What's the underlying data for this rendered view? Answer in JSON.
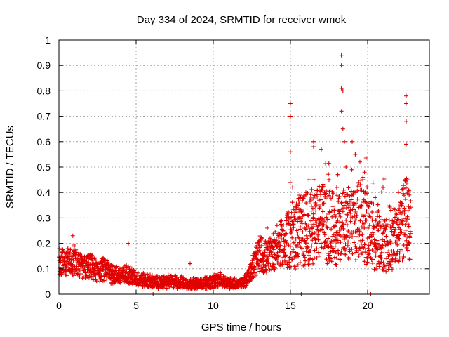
{
  "chart_data": {
    "type": "scatter",
    "title": "Day 334 of 2024, SRMTID for receiver wmok",
    "xlabel": "GPS time / hours",
    "ylabel": "SRMTID / TECUs",
    "xlim": [
      0,
      24
    ],
    "ylim": [
      0,
      1
    ],
    "xticks": [
      0,
      5,
      10,
      15,
      20
    ],
    "yticks": [
      0,
      0.1,
      0.2,
      0.3,
      0.4,
      0.5,
      0.6,
      0.7,
      0.8,
      0.9,
      1
    ],
    "xtick_labels": [
      "0",
      "5",
      "10",
      "15",
      "20"
    ],
    "ytick_labels": [
      "0",
      "0.1",
      "0.2",
      "0.3",
      "0.4",
      "0.5",
      "0.6",
      "0.7",
      "0.8",
      "0.9",
      "1"
    ],
    "grid": true,
    "marker": "+",
    "color": "#e00000",
    "series": [
      {
        "name": "SRMTID",
        "profile": [
          [
            0.0,
            0.13
          ],
          [
            0.5,
            0.12
          ],
          [
            1.0,
            0.14
          ],
          [
            1.5,
            0.1
          ],
          [
            2.0,
            0.11
          ],
          [
            2.5,
            0.09
          ],
          [
            3.0,
            0.1
          ],
          [
            3.5,
            0.08
          ],
          [
            4.0,
            0.07
          ],
          [
            4.5,
            0.08
          ],
          [
            5.0,
            0.06
          ],
          [
            5.5,
            0.055
          ],
          [
            6.0,
            0.05
          ],
          [
            6.5,
            0.045
          ],
          [
            7.0,
            0.05
          ],
          [
            7.5,
            0.05
          ],
          [
            8.0,
            0.045
          ],
          [
            8.5,
            0.04
          ],
          [
            9.0,
            0.04
          ],
          [
            9.5,
            0.045
          ],
          [
            10.0,
            0.05
          ],
          [
            10.5,
            0.055
          ],
          [
            11.0,
            0.045
          ],
          [
            11.5,
            0.04
          ],
          [
            12.0,
            0.045
          ],
          [
            12.5,
            0.1
          ],
          [
            13.0,
            0.16
          ],
          [
            13.5,
            0.14
          ],
          [
            14.0,
            0.18
          ],
          [
            14.5,
            0.2
          ],
          [
            15.0,
            0.22
          ],
          [
            15.5,
            0.24
          ],
          [
            16.0,
            0.26
          ],
          [
            16.5,
            0.27
          ],
          [
            17.0,
            0.28
          ],
          [
            17.5,
            0.27
          ],
          [
            18.0,
            0.26
          ],
          [
            18.5,
            0.27
          ],
          [
            19.0,
            0.28
          ],
          [
            19.5,
            0.3
          ],
          [
            20.0,
            0.26
          ],
          [
            20.5,
            0.22
          ],
          [
            21.0,
            0.2
          ],
          [
            21.5,
            0.19
          ],
          [
            22.0,
            0.25
          ],
          [
            22.5,
            0.3
          ],
          [
            22.8,
            0.24
          ]
        ],
        "sample_step_hours": 0.01,
        "peaks": [
          [
            15.0,
            0.75
          ],
          [
            15.0,
            0.7
          ],
          [
            15.0,
            0.56
          ],
          [
            16.0,
            0.4
          ],
          [
            16.5,
            0.6
          ],
          [
            16.5,
            0.58
          ],
          [
            17.0,
            0.57
          ],
          [
            17.5,
            0.45
          ],
          [
            18.0,
            0.42
          ],
          [
            18.3,
            0.94
          ],
          [
            18.3,
            0.9
          ],
          [
            18.3,
            0.81
          ],
          [
            18.4,
            0.8
          ],
          [
            18.3,
            0.72
          ],
          [
            18.4,
            0.65
          ],
          [
            18.5,
            0.6
          ],
          [
            18.6,
            0.5
          ],
          [
            19.0,
            0.6
          ],
          [
            19.2,
            0.55
          ],
          [
            19.5,
            0.52
          ],
          [
            19.7,
            0.45
          ],
          [
            20.0,
            0.35
          ],
          [
            20.5,
            0.38
          ],
          [
            21.0,
            0.42
          ],
          [
            22.0,
            0.4
          ],
          [
            22.5,
            0.78
          ],
          [
            22.5,
            0.75
          ],
          [
            22.5,
            0.68
          ],
          [
            22.5,
            0.59
          ],
          [
            22.6,
            0.45
          ],
          [
            0.9,
            0.23
          ],
          [
            4.5,
            0.2
          ],
          [
            8.5,
            0.12
          ],
          [
            13.0,
            0.21
          ],
          [
            13.5,
            0.26
          ],
          [
            15.5,
            0.35
          ],
          [
            16.2,
            0.45
          ],
          [
            17.2,
            0.4
          ],
          [
            19.8,
            0.48
          ],
          [
            21.5,
            0.33
          ]
        ],
        "zero_points": [
          [
            6.1,
            0.0
          ],
          [
            15.7,
            0.0
          ],
          [
            20.2,
            0.0
          ]
        ]
      }
    ]
  }
}
